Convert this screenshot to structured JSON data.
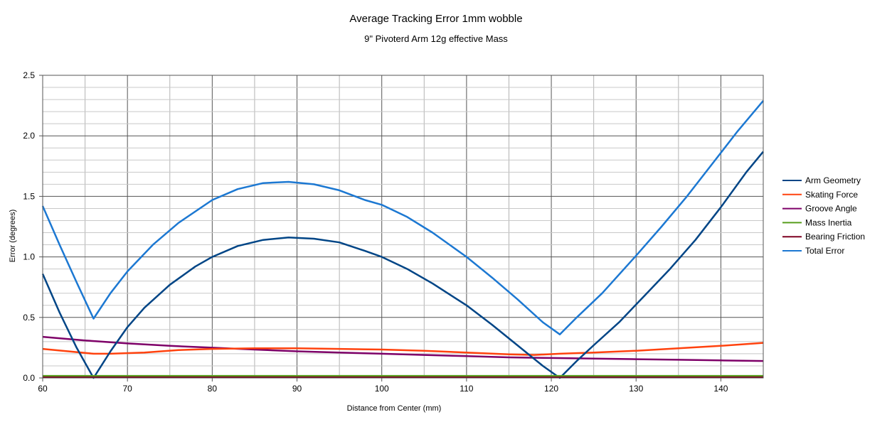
{
  "chart_data": {
    "type": "line",
    "title": "Average Tracking Error 1mm wobble",
    "subtitle": "9\" Pivoterd Arm 12g effective Mass",
    "xlabel": "Distance from Center (mm)",
    "ylabel": "Error (degrees)",
    "xlim": [
      60,
      145
    ],
    "ylim": [
      0,
      2.5
    ],
    "x_ticks": [
      "60",
      "70",
      "80",
      "90",
      "100",
      "110",
      "120",
      "130",
      "140"
    ],
    "y_ticks": [
      "0.0",
      "0.5",
      "1.0",
      "1.5",
      "2.0",
      "2.5"
    ],
    "grid": true,
    "legend_position": "right",
    "series": [
      {
        "name": "Arm Geometry",
        "color": "#004586",
        "points": [
          [
            60,
            0.86
          ],
          [
            62,
            0.54
          ],
          [
            64,
            0.25
          ],
          [
            66,
            0.0
          ],
          [
            68,
            0.22
          ],
          [
            70,
            0.42
          ],
          [
            72,
            0.58
          ],
          [
            75,
            0.77
          ],
          [
            78,
            0.92
          ],
          [
            80,
            1.0
          ],
          [
            83,
            1.09
          ],
          [
            86,
            1.14
          ],
          [
            89,
            1.16
          ],
          [
            92,
            1.15
          ],
          [
            95,
            1.12
          ],
          [
            98,
            1.05
          ],
          [
            100,
            1.0
          ],
          [
            103,
            0.9
          ],
          [
            106,
            0.78
          ],
          [
            110,
            0.6
          ],
          [
            113,
            0.44
          ],
          [
            116,
            0.27
          ],
          [
            119,
            0.1
          ],
          [
            121,
            0.0
          ],
          [
            123,
            0.14
          ],
          [
            125,
            0.27
          ],
          [
            128,
            0.46
          ],
          [
            131,
            0.68
          ],
          [
            134,
            0.9
          ],
          [
            137,
            1.14
          ],
          [
            140,
            1.41
          ],
          [
            143,
            1.7
          ],
          [
            145,
            1.87
          ]
        ]
      },
      {
        "name": "Skating Force",
        "color": "#ff420e",
        "points": [
          [
            60,
            0.24
          ],
          [
            63,
            0.22
          ],
          [
            66,
            0.2
          ],
          [
            68,
            0.2
          ],
          [
            72,
            0.21
          ],
          [
            76,
            0.23
          ],
          [
            80,
            0.24
          ],
          [
            85,
            0.245
          ],
          [
            90,
            0.245
          ],
          [
            95,
            0.24
          ],
          [
            100,
            0.235
          ],
          [
            105,
            0.225
          ],
          [
            110,
            0.21
          ],
          [
            115,
            0.195
          ],
          [
            118,
            0.19
          ],
          [
            121,
            0.2
          ],
          [
            125,
            0.21
          ],
          [
            130,
            0.225
          ],
          [
            135,
            0.245
          ],
          [
            140,
            0.265
          ],
          [
            145,
            0.29
          ]
        ]
      },
      {
        "name": "Groove Angle",
        "color": "#7e0068",
        "points": [
          [
            60,
            0.34
          ],
          [
            65,
            0.31
          ],
          [
            70,
            0.285
          ],
          [
            75,
            0.265
          ],
          [
            80,
            0.25
          ],
          [
            85,
            0.235
          ],
          [
            90,
            0.22
          ],
          [
            95,
            0.21
          ],
          [
            100,
            0.2
          ],
          [
            105,
            0.19
          ],
          [
            110,
            0.18
          ],
          [
            115,
            0.17
          ],
          [
            120,
            0.165
          ],
          [
            125,
            0.16
          ],
          [
            130,
            0.155
          ],
          [
            135,
            0.15
          ],
          [
            140,
            0.145
          ],
          [
            145,
            0.14
          ]
        ]
      },
      {
        "name": "Mass Inertia",
        "color": "#579d1c",
        "points": [
          [
            60,
            0.015
          ],
          [
            145,
            0.015
          ]
        ]
      },
      {
        "name": "Bearing Friction",
        "color": "#7e0021",
        "points": [
          [
            60,
            0.004
          ],
          [
            145,
            0.004
          ]
        ]
      },
      {
        "name": "Total Error",
        "color": "#1c78d2",
        "points": [
          [
            60,
            1.42
          ],
          [
            62,
            1.1
          ],
          [
            64,
            0.79
          ],
          [
            66,
            0.49
          ],
          [
            68,
            0.7
          ],
          [
            70,
            0.88
          ],
          [
            73,
            1.1
          ],
          [
            76,
            1.28
          ],
          [
            80,
            1.47
          ],
          [
            83,
            1.56
          ],
          [
            86,
            1.61
          ],
          [
            89,
            1.62
          ],
          [
            92,
            1.6
          ],
          [
            95,
            1.55
          ],
          [
            98,
            1.47
          ],
          [
            100,
            1.43
          ],
          [
            103,
            1.33
          ],
          [
            106,
            1.2
          ],
          [
            110,
            1.0
          ],
          [
            113,
            0.83
          ],
          [
            116,
            0.65
          ],
          [
            119,
            0.46
          ],
          [
            121,
            0.36
          ],
          [
            123,
            0.5
          ],
          [
            126,
            0.7
          ],
          [
            130,
            1.01
          ],
          [
            133,
            1.25
          ],
          [
            136,
            1.5
          ],
          [
            139,
            1.77
          ],
          [
            142,
            2.04
          ],
          [
            145,
            2.29
          ]
        ]
      }
    ]
  }
}
